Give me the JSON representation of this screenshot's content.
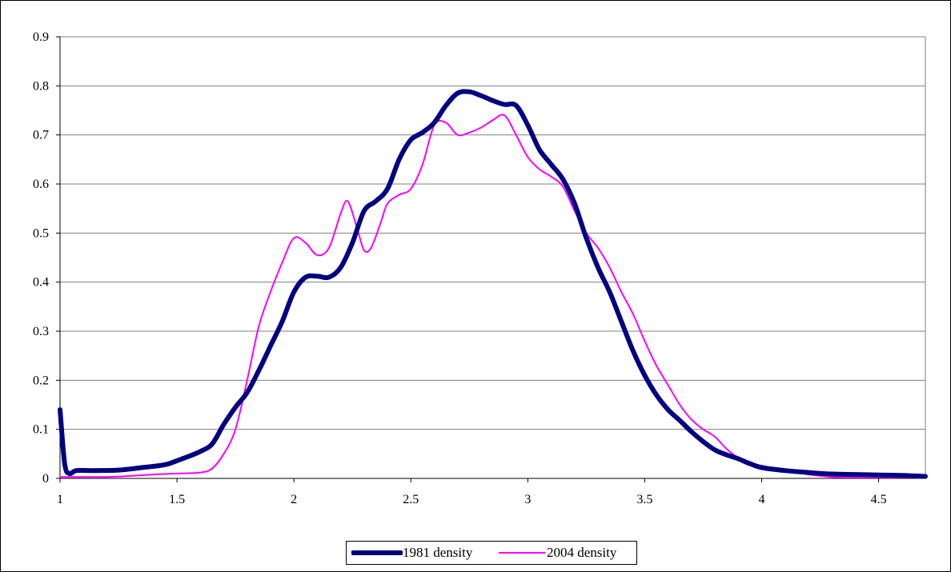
{
  "chart_data": {
    "type": "line",
    "title": "",
    "xlabel": "",
    "ylabel": "",
    "xlim": [
      1,
      4.7
    ],
    "ylim": [
      0,
      0.9
    ],
    "x_ticks": [
      1,
      1.5,
      2,
      2.5,
      3,
      3.5,
      4,
      4.5
    ],
    "x_tick_labels": [
      "1",
      "1.5",
      "2",
      "2.5",
      "3",
      "3.5",
      "4",
      "4.5"
    ],
    "y_ticks": [
      0,
      0.1,
      0.2,
      0.3,
      0.4,
      0.5,
      0.6,
      0.7,
      0.8,
      0.9
    ],
    "y_tick_labels": [
      "0",
      "0.1",
      "0.2",
      "0.3",
      "0.4",
      "0.5",
      "0.6",
      "0.7",
      "0.8",
      "0.9"
    ],
    "grid": true,
    "legend_position": "bottom-center",
    "series": [
      {
        "name": "1981 density",
        "color": "#000080",
        "style": "thick",
        "points": [
          [
            1.0,
            0.14
          ],
          [
            1.02,
            0.03
          ],
          [
            1.04,
            0.01
          ],
          [
            1.07,
            0.016
          ],
          [
            1.15,
            0.016
          ],
          [
            1.25,
            0.017
          ],
          [
            1.35,
            0.022
          ],
          [
            1.45,
            0.028
          ],
          [
            1.5,
            0.036
          ],
          [
            1.55,
            0.045
          ],
          [
            1.6,
            0.055
          ],
          [
            1.65,
            0.07
          ],
          [
            1.7,
            0.11
          ],
          [
            1.75,
            0.145
          ],
          [
            1.8,
            0.175
          ],
          [
            1.85,
            0.22
          ],
          [
            1.9,
            0.27
          ],
          [
            1.95,
            0.32
          ],
          [
            2.0,
            0.38
          ],
          [
            2.05,
            0.41
          ],
          [
            2.1,
            0.412
          ],
          [
            2.15,
            0.41
          ],
          [
            2.2,
            0.43
          ],
          [
            2.25,
            0.48
          ],
          [
            2.3,
            0.545
          ],
          [
            2.35,
            0.565
          ],
          [
            2.4,
            0.59
          ],
          [
            2.45,
            0.65
          ],
          [
            2.5,
            0.69
          ],
          [
            2.55,
            0.705
          ],
          [
            2.6,
            0.725
          ],
          [
            2.65,
            0.76
          ],
          [
            2.7,
            0.785
          ],
          [
            2.75,
            0.788
          ],
          [
            2.8,
            0.78
          ],
          [
            2.85,
            0.77
          ],
          [
            2.9,
            0.762
          ],
          [
            2.95,
            0.76
          ],
          [
            3.0,
            0.72
          ],
          [
            3.05,
            0.67
          ],
          [
            3.1,
            0.64
          ],
          [
            3.15,
            0.61
          ],
          [
            3.2,
            0.56
          ],
          [
            3.25,
            0.49
          ],
          [
            3.3,
            0.43
          ],
          [
            3.35,
            0.38
          ],
          [
            3.4,
            0.32
          ],
          [
            3.45,
            0.26
          ],
          [
            3.5,
            0.21
          ],
          [
            3.55,
            0.17
          ],
          [
            3.6,
            0.14
          ],
          [
            3.65,
            0.118
          ],
          [
            3.7,
            0.095
          ],
          [
            3.75,
            0.075
          ],
          [
            3.8,
            0.058
          ],
          [
            3.85,
            0.048
          ],
          [
            3.9,
            0.04
          ],
          [
            3.95,
            0.03
          ],
          [
            4.0,
            0.022
          ],
          [
            4.1,
            0.016
          ],
          [
            4.2,
            0.012
          ],
          [
            4.3,
            0.009
          ],
          [
            4.4,
            0.008
          ],
          [
            4.5,
            0.007
          ],
          [
            4.6,
            0.006
          ],
          [
            4.7,
            0.004
          ]
        ]
      },
      {
        "name": "2004 density",
        "color": "#FF00FF",
        "style": "thin",
        "points": [
          [
            1.0,
            0.003
          ],
          [
            1.1,
            0.003
          ],
          [
            1.2,
            0.003
          ],
          [
            1.3,
            0.005
          ],
          [
            1.4,
            0.008
          ],
          [
            1.5,
            0.01
          ],
          [
            1.6,
            0.012
          ],
          [
            1.65,
            0.02
          ],
          [
            1.7,
            0.05
          ],
          [
            1.75,
            0.1
          ],
          [
            1.8,
            0.2
          ],
          [
            1.85,
            0.31
          ],
          [
            1.9,
            0.38
          ],
          [
            1.95,
            0.44
          ],
          [
            2.0,
            0.49
          ],
          [
            2.05,
            0.48
          ],
          [
            2.1,
            0.455
          ],
          [
            2.15,
            0.47
          ],
          [
            2.2,
            0.54
          ],
          [
            2.23,
            0.565
          ],
          [
            2.27,
            0.51
          ],
          [
            2.3,
            0.465
          ],
          [
            2.33,
            0.47
          ],
          [
            2.37,
            0.52
          ],
          [
            2.4,
            0.56
          ],
          [
            2.45,
            0.578
          ],
          [
            2.5,
            0.59
          ],
          [
            2.55,
            0.64
          ],
          [
            2.6,
            0.72
          ],
          [
            2.65,
            0.725
          ],
          [
            2.7,
            0.7
          ],
          [
            2.75,
            0.705
          ],
          [
            2.8,
            0.715
          ],
          [
            2.85,
            0.73
          ],
          [
            2.9,
            0.74
          ],
          [
            2.95,
            0.7
          ],
          [
            3.0,
            0.655
          ],
          [
            3.05,
            0.63
          ],
          [
            3.1,
            0.615
          ],
          [
            3.15,
            0.595
          ],
          [
            3.2,
            0.545
          ],
          [
            3.25,
            0.5
          ],
          [
            3.3,
            0.47
          ],
          [
            3.35,
            0.43
          ],
          [
            3.4,
            0.38
          ],
          [
            3.45,
            0.335
          ],
          [
            3.5,
            0.28
          ],
          [
            3.55,
            0.23
          ],
          [
            3.6,
            0.19
          ],
          [
            3.65,
            0.15
          ],
          [
            3.7,
            0.12
          ],
          [
            3.75,
            0.1
          ],
          [
            3.8,
            0.085
          ],
          [
            3.85,
            0.06
          ],
          [
            3.9,
            0.042
          ],
          [
            3.95,
            0.03
          ],
          [
            4.0,
            0.026
          ],
          [
            4.1,
            0.016
          ],
          [
            4.2,
            0.008
          ],
          [
            4.3,
            0.003
          ],
          [
            4.4,
            0.002
          ],
          [
            4.5,
            0.002
          ],
          [
            4.6,
            0.002
          ],
          [
            4.7,
            0.001
          ]
        ]
      }
    ]
  }
}
